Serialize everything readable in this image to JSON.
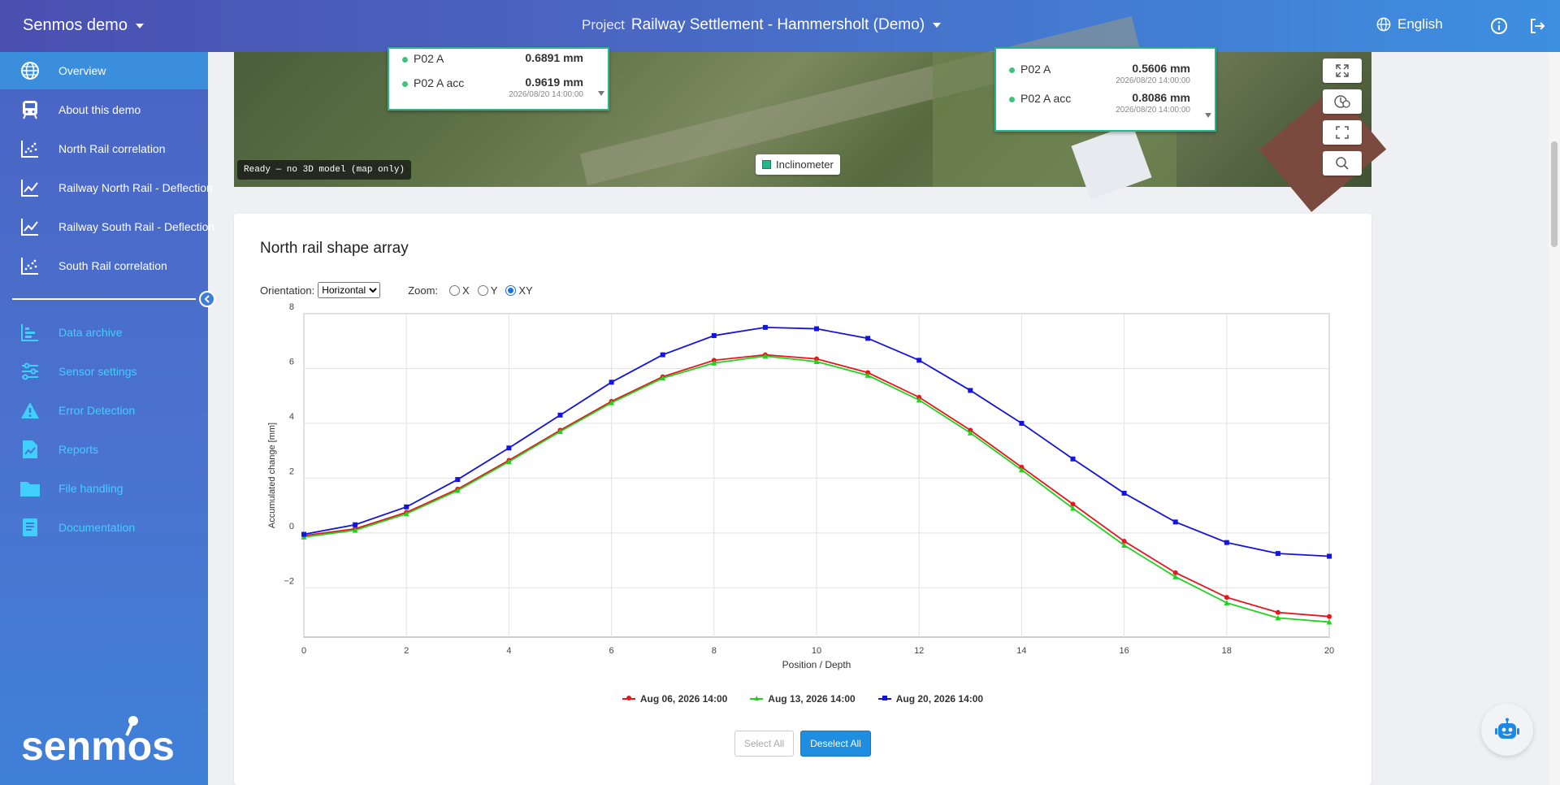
{
  "topbar": {
    "app_name": "Senmos demo",
    "project_label": "Project",
    "project_name": "Railway Settlement - Hammersholt (Demo)",
    "language": "English"
  },
  "sidebar": {
    "items": [
      {
        "label": "Overview",
        "icon": "globe-icon"
      },
      {
        "label": "About this demo",
        "icon": "train-icon"
      },
      {
        "label": "North Rail correlation",
        "icon": "scatter-icon"
      },
      {
        "label": "Railway North Rail - Deflection",
        "icon": "line-chart-icon"
      },
      {
        "label": "Railway South Rail - Deflection",
        "icon": "line-chart-icon"
      },
      {
        "label": "South Rail correlation",
        "icon": "scatter-icon"
      }
    ],
    "tools": [
      {
        "label": "Data archive",
        "icon": "bar-chart-icon"
      },
      {
        "label": "Sensor settings",
        "icon": "sliders-icon"
      },
      {
        "label": "Error Detection",
        "icon": "warning-icon"
      },
      {
        "label": "Reports",
        "icon": "report-icon"
      },
      {
        "label": "File handling",
        "icon": "folder-icon"
      },
      {
        "label": "Documentation",
        "icon": "book-icon"
      }
    ],
    "logo_text": "senmos"
  },
  "map": {
    "popup_left": {
      "rows": [
        {
          "name": "P02 A",
          "value": "0.6891 mm",
          "time": ""
        },
        {
          "name": "P02 A acc",
          "value": "0.9619 mm",
          "time": "2026/08/20 14:00:00"
        }
      ]
    },
    "popup_right": {
      "rows": [
        {
          "name": "P02 A",
          "value": "0.5606 mm",
          "time": "2026/08/20 14:00:00"
        },
        {
          "name": "P02 A acc",
          "value": "0.8086 mm",
          "time": "2026/08/20 14:00:00"
        }
      ]
    },
    "status": "Ready — no 3D model (map only)",
    "legend_label": "Inclinometer"
  },
  "card": {
    "title": "North rail shape array",
    "orientation_label": "Orientation:",
    "orientation_value": "Horizontal",
    "zoom_label": "Zoom:",
    "zoom_options": [
      "X",
      "Y",
      "XY"
    ],
    "zoom_selected": "XY",
    "select_all": "Select All",
    "deselect_all": "Deselect All"
  },
  "chart_data": {
    "type": "line",
    "xlabel": "Position / Depth",
    "ylabel": "Accumulated change [mm]",
    "xlim": [
      0,
      20
    ],
    "ylim": [
      -3.8,
      8
    ],
    "xticks": [
      0,
      2,
      4,
      6,
      8,
      10,
      12,
      14,
      16,
      18,
      20
    ],
    "yticks": [
      -2,
      0,
      2,
      4,
      6,
      8
    ],
    "grid": true,
    "legend": "bottom",
    "x": [
      0,
      1,
      2,
      3,
      4,
      5,
      6,
      7,
      8,
      9,
      10,
      11,
      12,
      13,
      14,
      15,
      16,
      17,
      18,
      19,
      20
    ],
    "series": [
      {
        "name": "Aug 06, 2026 14:00",
        "color": "#e8141e",
        "marker": "circle",
        "values": [
          -0.1,
          0.15,
          0.75,
          1.6,
          2.65,
          3.75,
          4.8,
          5.7,
          6.3,
          6.5,
          6.35,
          5.85,
          4.95,
          3.75,
          2.4,
          1.05,
          -0.3,
          -1.45,
          -2.35,
          -2.9,
          -3.05
        ]
      },
      {
        "name": "Aug 13, 2026 14:00",
        "color": "#1ed41e",
        "marker": "triangle",
        "values": [
          -0.15,
          0.1,
          0.7,
          1.55,
          2.6,
          3.7,
          4.75,
          5.65,
          6.2,
          6.45,
          6.25,
          5.75,
          4.85,
          3.65,
          2.3,
          0.9,
          -0.45,
          -1.6,
          -2.55,
          -3.1,
          -3.25
        ]
      },
      {
        "name": "Aug 20, 2026 14:00",
        "color": "#1414e0",
        "marker": "square",
        "values": [
          -0.05,
          0.3,
          0.95,
          1.95,
          3.1,
          4.3,
          5.5,
          6.5,
          7.2,
          7.5,
          7.45,
          7.1,
          6.3,
          5.2,
          4.0,
          2.7,
          1.45,
          0.4,
          -0.35,
          -0.75,
          -0.85
        ]
      }
    ]
  }
}
